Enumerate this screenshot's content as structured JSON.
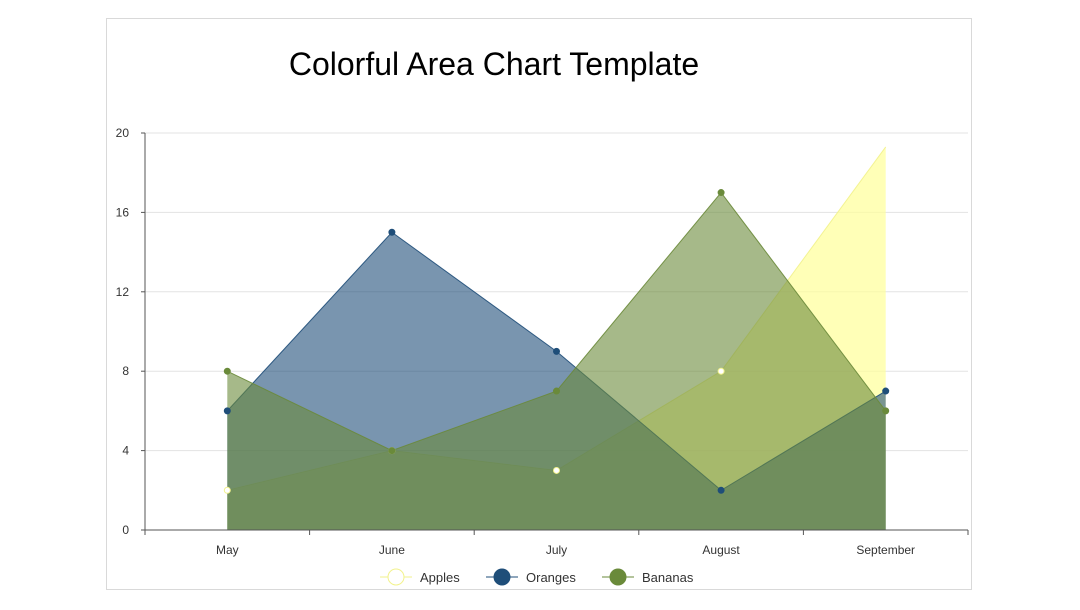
{
  "chart_data": {
    "type": "area",
    "title": "Colorful Area Chart Template",
    "xlabel": "",
    "ylabel": "",
    "categories": [
      "May",
      "June",
      "July",
      "August",
      "September"
    ],
    "ylim": [
      0,
      20
    ],
    "yticks": [
      0,
      4,
      8,
      12,
      16,
      20
    ],
    "grid": true,
    "legend_position": "bottom",
    "series": [
      {
        "name": "Apples",
        "values": [
          2,
          4,
          3,
          8,
          19.3
        ],
        "color": "#ffff99",
        "line_color": "#f2f28c",
        "marker_fill": "#ffffff"
      },
      {
        "name": "Oranges",
        "values": [
          6,
          15,
          9,
          2,
          7
        ],
        "color": "#1f4e79",
        "line_color": "#1f4e79",
        "marker_fill": "#1f4e79"
      },
      {
        "name": "Bananas",
        "values": [
          8,
          4,
          7,
          17,
          6
        ],
        "color": "#6a8a3a",
        "line_color": "#6a8a3a",
        "marker_fill": "#6a8a3a"
      }
    ]
  }
}
